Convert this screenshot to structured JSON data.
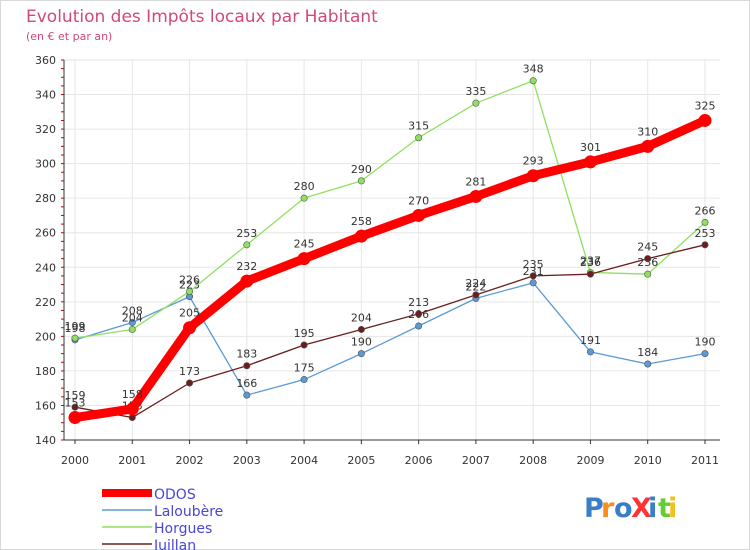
{
  "chart_data": {
    "type": "line",
    "title": "Evolution des Impôts locaux par Habitant",
    "subtitle": "(en € et par an)",
    "xlabel": "",
    "ylabel": "",
    "categories": [
      "2000",
      "2001",
      "2002",
      "2003",
      "2004",
      "2005",
      "2006",
      "2007",
      "2008",
      "2009",
      "2010",
      "2011"
    ],
    "ylim": [
      140,
      360
    ],
    "yticks": [
      140,
      160,
      180,
      200,
      220,
      240,
      260,
      280,
      300,
      320,
      340,
      360
    ],
    "grid": true,
    "legend_position": "bottom-left",
    "series": [
      {
        "name": "ODOS",
        "color": "#ff0000",
        "values": [
          153,
          158,
          205,
          232,
          245,
          258,
          270,
          281,
          293,
          301,
          310,
          325
        ],
        "labels": [
          "153",
          "158",
          "205",
          "232",
          "245",
          "258",
          "270",
          "281",
          "293",
          "301",
          "310",
          "325"
        ]
      },
      {
        "name": "Laloubère",
        "color": "#5b9bd5",
        "values": [
          198,
          208,
          223,
          166,
          175,
          190,
          206,
          222,
          231,
          191,
          184,
          190
        ],
        "labels": [
          "198",
          "208",
          "223",
          "166",
          "175",
          "190",
          "206",
          "222",
          "231",
          "191",
          "184",
          "190"
        ]
      },
      {
        "name": "Horgues",
        "color": "#90e060",
        "values": [
          199,
          204,
          226,
          253,
          280,
          290,
          315,
          335,
          348,
          237,
          236,
          266
        ],
        "labels": [
          "199",
          "204",
          "226",
          "253",
          "280",
          "290",
          "315",
          "335",
          "348",
          "237",
          "236",
          "266"
        ]
      },
      {
        "name": "Juillan",
        "color": "#6b1e1e",
        "values": [
          159,
          153,
          173,
          183,
          195,
          204,
          213,
          224,
          235,
          236,
          245,
          253
        ],
        "labels": [
          "159",
          "153",
          "173",
          "183",
          "195",
          "204",
          "213",
          "224",
          "235",
          "236",
          "245",
          "253"
        ]
      }
    ]
  },
  "logo": {
    "text": "ProXiti"
  }
}
